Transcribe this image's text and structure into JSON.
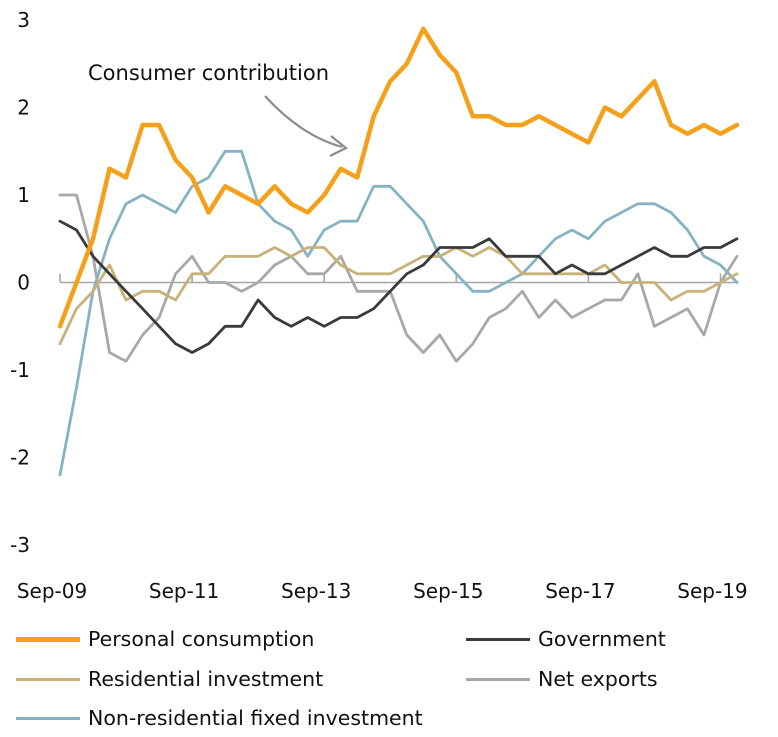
{
  "chart_data": {
    "type": "line",
    "title": "",
    "xlabel": "",
    "ylabel": "",
    "ylim": [
      -3,
      3
    ],
    "yticks": [
      "3",
      "2",
      "1",
      "0",
      "-1",
      "-2",
      "-3"
    ],
    "xtick_labels": [
      "Sep-09",
      "Sep-11",
      "Sep-13",
      "Sep-15",
      "Sep-17",
      "Sep-19"
    ],
    "x_period": "quarterly, Sep-09 to Dec-19",
    "annotation": "Consumer contribution",
    "grid": false,
    "legend_position": "bottom",
    "series": [
      {
        "name": "Personal consumption",
        "color": "#F5A01A",
        "values": [
          -0.5,
          0.0,
          0.5,
          1.3,
          1.2,
          1.8,
          1.8,
          1.4,
          1.2,
          0.8,
          1.1,
          1.0,
          0.9,
          1.1,
          0.9,
          0.8,
          1.0,
          1.3,
          1.2,
          1.9,
          2.3,
          2.5,
          2.9,
          2.6,
          2.4,
          1.9,
          1.9,
          1.8,
          1.8,
          1.9,
          1.8,
          1.7,
          1.6,
          2.0,
          1.9,
          2.1,
          2.3,
          1.8,
          1.7,
          1.8,
          1.7,
          1.8
        ]
      },
      {
        "name": "Government",
        "color": "#3A3A3A",
        "values": [
          0.7,
          0.6,
          0.3,
          0.1,
          -0.1,
          -0.3,
          -0.5,
          -0.7,
          -0.8,
          -0.7,
          -0.5,
          -0.5,
          -0.2,
          -0.4,
          -0.5,
          -0.4,
          -0.5,
          -0.4,
          -0.4,
          -0.3,
          -0.1,
          0.1,
          0.2,
          0.4,
          0.4,
          0.4,
          0.5,
          0.3,
          0.3,
          0.3,
          0.1,
          0.2,
          0.1,
          0.1,
          0.2,
          0.3,
          0.4,
          0.3,
          0.3,
          0.4,
          0.4,
          0.5
        ]
      },
      {
        "name": "Residential investment",
        "color": "#C8B27A",
        "values": [
          -0.7,
          -0.3,
          -0.1,
          0.2,
          -0.2,
          -0.1,
          -0.1,
          -0.2,
          0.1,
          0.1,
          0.3,
          0.3,
          0.3,
          0.4,
          0.3,
          0.4,
          0.4,
          0.2,
          0.1,
          0.1,
          0.1,
          0.2,
          0.3,
          0.3,
          0.4,
          0.3,
          0.4,
          0.3,
          0.1,
          0.1,
          0.1,
          0.1,
          0.1,
          0.2,
          0.0,
          0.0,
          0.0,
          -0.2,
          -0.1,
          -0.1,
          0.0,
          0.1
        ]
      },
      {
        "name": "Net exports",
        "color": "#A8A8A8",
        "values": [
          1.0,
          1.0,
          0.3,
          -0.8,
          -0.9,
          -0.6,
          -0.4,
          0.1,
          0.3,
          0.0,
          0.0,
          -0.1,
          0.0,
          0.2,
          0.3,
          0.1,
          0.1,
          0.3,
          -0.1,
          -0.1,
          -0.1,
          -0.6,
          -0.8,
          -0.6,
          -0.9,
          -0.7,
          -0.4,
          -0.3,
          -0.1,
          -0.4,
          -0.2,
          -0.4,
          -0.3,
          -0.2,
          -0.2,
          0.1,
          -0.5,
          -0.4,
          -0.3,
          -0.6,
          0.0,
          0.3
        ]
      },
      {
        "name": "Non-residential fixed investment",
        "color": "#86B3C4",
        "values": [
          -2.2,
          -1.2,
          -0.1,
          0.5,
          0.9,
          1.0,
          0.9,
          0.8,
          1.1,
          1.2,
          1.5,
          1.5,
          0.9,
          0.7,
          0.6,
          0.3,
          0.6,
          0.7,
          0.7,
          1.1,
          1.1,
          0.9,
          0.7,
          0.3,
          0.1,
          -0.1,
          -0.1,
          0.0,
          0.1,
          0.3,
          0.5,
          0.6,
          0.5,
          0.7,
          0.8,
          0.9,
          0.9,
          0.8,
          0.6,
          0.3,
          0.2,
          0.0
        ]
      }
    ]
  }
}
